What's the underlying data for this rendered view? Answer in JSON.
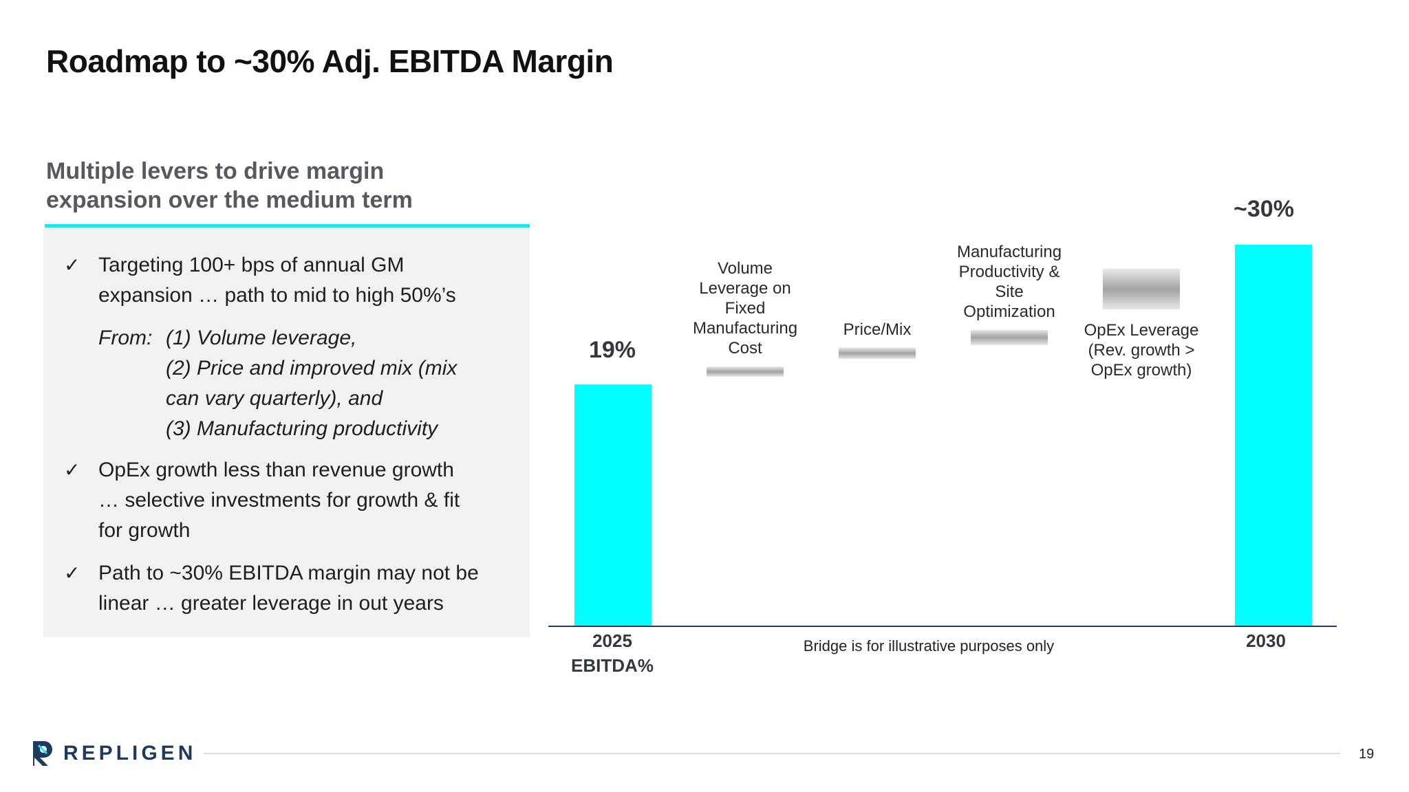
{
  "title": "Roadmap to ~30% Adj. EBITDA Margin",
  "subtitle_line1": "Multiple levers to drive margin",
  "subtitle_line2": "expansion over the medium term",
  "bullets": [
    {
      "check": "✓",
      "lines": [
        "Targeting 100+ bps of annual GM",
        "expansion … path to mid to high 50%’s"
      ]
    },
    {
      "check": "✓",
      "lines": [
        "OpEx growth less than revenue growth",
        "… selective investments for growth & fit",
        "for growth"
      ]
    },
    {
      "check": "✓",
      "lines": [
        "Path to ~30% EBITDA margin may not be",
        "linear … greater leverage in out years"
      ]
    }
  ],
  "from_block": {
    "label": "From:",
    "items": [
      "(1) Volume leverage,",
      "(2) Price and improved mix (mix",
      "can vary quarterly), and",
      "(3) Manufacturing productivity"
    ]
  },
  "chart_data": {
    "type": "bar",
    "subtype": "waterfall",
    "categories": [
      "2025 EBITDA%",
      "Volume Leverage on Fixed Manufacturing Cost",
      "Price/Mix",
      "Manufacturing Productivity & Site Optimization",
      "OpEx Leverage (Rev. growth > OpEx growth)",
      "2030"
    ],
    "totals": {
      "start": 19,
      "end": 30
    },
    "steps": [
      {
        "label": "Volume Leverage on Fixed Manufacturing Cost",
        "start": 19.6,
        "end": 20.4
      },
      {
        "label": "Price/Mix",
        "start": 21.0,
        "end": 21.9
      },
      {
        "label": "Manufacturing Productivity & Site Optimization",
        "start": 22.1,
        "end": 23.3
      },
      {
        "label": "OpEx Leverage (Rev. growth > OpEx growth)",
        "start": 24.9,
        "end": 28.1
      }
    ],
    "data_labels": {
      "start": "19%",
      "end": "~30%"
    },
    "lever_labels": [
      [
        "Volume",
        "Leverage on",
        "Fixed",
        "Manufacturing",
        "Cost"
      ],
      [
        "Price/Mix"
      ],
      [
        "Manufacturing",
        "Productivity &",
        "Site",
        "Optimization"
      ],
      [
        "OpEx Leverage",
        "(Rev. growth >",
        "OpEx growth)"
      ]
    ],
    "xlabels": {
      "start_line1": "2025",
      "start_line2": "EBITDA%",
      "end": "2030"
    },
    "footnote": "Bridge is for illustrative purposes only",
    "ylim": [
      0,
      30
    ],
    "colors": {
      "total_bar": "#00ffff",
      "step_bar": "#a9a9a9",
      "axis": "#1f3a5f"
    }
  },
  "footer": {
    "brand": "REPLIGEN",
    "page": "19"
  },
  "colors": {
    "accent": "#1fe3ee",
    "brand": "#1f3a5f"
  }
}
